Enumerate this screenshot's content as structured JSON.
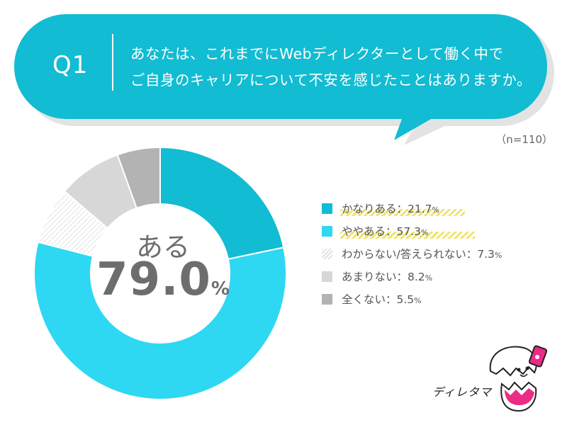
{
  "question": {
    "number": "Q1",
    "line1": "あなたは、これまでにWebディレクターとして働く中で",
    "line2": "ご自身のキャリアについて不安を感じたことはありますか。"
  },
  "sample_size": "（n=110）",
  "center": {
    "label": "ある",
    "value": "79.0",
    "unit": "%"
  },
  "legend": [
    {
      "label": "かなりある：21.7",
      "unit": "%"
    },
    {
      "label": "ややある：57.3",
      "unit": "%"
    },
    {
      "label": "わからない/答えられない：7.3",
      "unit": "%"
    },
    {
      "label": "あまりない：8.2",
      "unit": "%"
    },
    {
      "label": "全くない：5.5",
      "unit": "%"
    }
  ],
  "mascot_name": "ディレタマ",
  "colors": {
    "accent": "#12bcd2",
    "kanari_aru": "#12bcd2",
    "yaya_aru": "#2ed8f2",
    "wakaranai": "#e8e8e8",
    "amari_nai": "#d7d7d7",
    "mattaku_nai": "#b3b3b3",
    "highlight": "#f1e46b"
  },
  "chart_data": {
    "type": "pie",
    "categories": [
      "かなりある",
      "ややある",
      "わからない/答えられない",
      "あまりない",
      "全くない"
    ],
    "values": [
      21.7,
      57.3,
      7.3,
      8.2,
      5.5
    ],
    "unit": "%",
    "donut": true,
    "center_total": 79.0,
    "legend_position": "right",
    "title": ""
  }
}
